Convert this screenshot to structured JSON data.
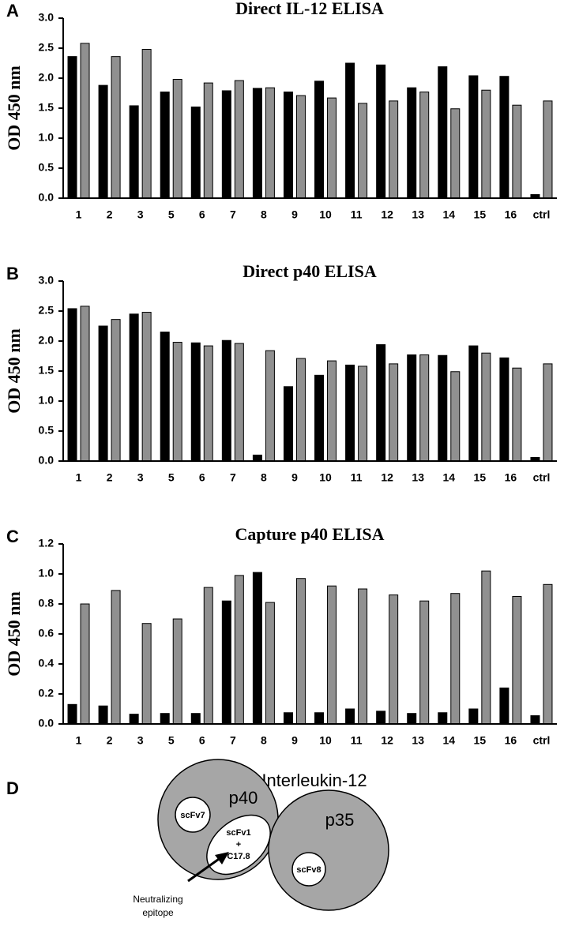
{
  "chart_data": [
    {
      "type": "bar",
      "panel": "A",
      "title": "Direct IL-12 ELISA",
      "y_label": "OD 450 nm",
      "categories": [
        "1",
        "2",
        "3",
        "5",
        "6",
        "7",
        "8",
        "9",
        "10",
        "11",
        "12",
        "13",
        "14",
        "15",
        "16",
        "ctrl"
      ],
      "series": [
        {
          "color": "#000000",
          "values": [
            2.36,
            1.88,
            1.54,
            1.77,
            1.52,
            1.79,
            1.83,
            1.77,
            1.95,
            2.25,
            2.22,
            1.84,
            2.19,
            2.04,
            2.03,
            0.06
          ]
        },
        {
          "color": "#909090",
          "values": [
            2.58,
            2.36,
            2.48,
            1.98,
            1.92,
            1.96,
            1.84,
            1.71,
            1.67,
            1.58,
            1.62,
            1.77,
            1.49,
            1.8,
            1.55,
            1.62
          ]
        }
      ],
      "ylim": [
        0,
        3
      ],
      "yticks": [
        {
          "value": 0,
          "label": "0.0"
        },
        0.5,
        {
          "value": 1,
          "label": "1.0"
        },
        1.5,
        {
          "value": 2,
          "label": "2.0"
        },
        2.5,
        {
          "value": 3,
          "label": "3.0"
        }
      ]
    },
    {
      "type": "bar",
      "panel": "B",
      "title": "Direct p40 ELISA",
      "y_label": "OD 450 nm",
      "categories": [
        "1",
        "2",
        "3",
        "5",
        "6",
        "7",
        "8",
        "9",
        "10",
        "11",
        "12",
        "13",
        "14",
        "15",
        "16",
        "ctrl"
      ],
      "series": [
        {
          "color": "#000000",
          "values": [
            2.54,
            2.25,
            2.45,
            2.15,
            1.97,
            2.01,
            0.1,
            1.24,
            1.43,
            1.6,
            1.94,
            1.77,
            1.76,
            1.92,
            1.72,
            0.06
          ]
        },
        {
          "color": "#909090",
          "values": [
            2.58,
            2.36,
            2.48,
            1.98,
            1.92,
            1.96,
            1.84,
            1.71,
            1.67,
            1.58,
            1.62,
            1.77,
            1.49,
            1.8,
            1.55,
            1.62
          ]
        }
      ],
      "ylim": [
        0,
        3
      ],
      "yticks": [
        {
          "value": 0,
          "label": "0.0"
        },
        0.5,
        {
          "value": 1,
          "label": "1.0"
        },
        1.5,
        {
          "value": 2,
          "label": "2.0"
        },
        2.5,
        {
          "value": 3,
          "label": "3.0"
        }
      ]
    },
    {
      "type": "bar",
      "panel": "C",
      "title": "Capture p40 ELISA",
      "y_label": "OD 450 nm",
      "categories": [
        "1",
        "2",
        "3",
        "5",
        "6",
        "7",
        "8",
        "9",
        "10",
        "11",
        "12",
        "13",
        "14",
        "15",
        "16",
        "ctrl"
      ],
      "series": [
        {
          "color": "#000000",
          "values": [
            0.13,
            0.12,
            0.065,
            0.07,
            0.07,
            0.82,
            1.01,
            0.075,
            0.075,
            0.1,
            0.085,
            0.07,
            0.075,
            0.1,
            0.24,
            0.055
          ]
        },
        {
          "color": "#909090",
          "values": [
            0.8,
            0.89,
            0.67,
            0.7,
            0.91,
            0.99,
            0.81,
            0.97,
            0.92,
            0.9,
            0.86,
            0.82,
            0.87,
            1.02,
            0.85,
            0.93
          ]
        }
      ],
      "ylim": [
        0,
        1.2
      ],
      "yticks": [
        {
          "value": 0,
          "label": "0.0"
        },
        0.2,
        0.4,
        0.6,
        0.8,
        {
          "value": 1,
          "label": "1.0"
        },
        1.2
      ]
    }
  ],
  "diagram": {
    "panel": "D",
    "title": "Interleukin-12",
    "nodes": [
      "p40",
      "p35",
      "scFv7",
      "scFv1",
      "+",
      "C17.8",
      "scFv8"
    ],
    "annotation": [
      "Neutralizing",
      "epitope"
    ]
  }
}
